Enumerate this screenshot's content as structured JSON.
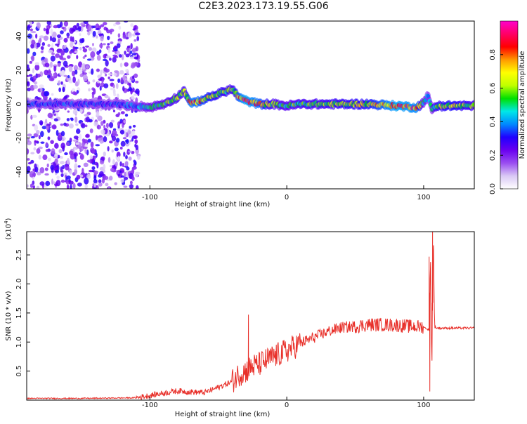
{
  "title": "C2E3.2023.173.19.55.G06",
  "chart_data": [
    {
      "type": "heatmap",
      "xlabel": "Height of straight line (km)",
      "ylabel": "Frequency (Hz)",
      "xlim": [
        -190,
        137
      ],
      "ylim": [
        -50,
        49
      ],
      "xticks": [
        -100,
        0,
        100
      ],
      "yticks": [
        -40,
        -20,
        0,
        20,
        40
      ],
      "grid": false,
      "colorbar": {
        "label": "Normalized spectral amplitude",
        "range": [
          0,
          1
        ],
        "ticks": [
          0.0,
          0.2,
          0.4,
          0.6,
          0.8
        ],
        "colormap": [
          "#ffffff",
          "#d9c8f5",
          "#9a4df0",
          "#6a00f0",
          "#2000ff",
          "#0088ff",
          "#00e8e8",
          "#00e000",
          "#bfff00",
          "#ffff00",
          "#ff9900",
          "#ff0000",
          "#ff0066",
          "#ff00cc"
        ]
      },
      "ridge": {
        "x": [
          -190,
          -130,
          -110,
          -100,
          -90,
          -80,
          -75,
          -70,
          -60,
          -50,
          -40,
          -35,
          -30,
          -25,
          -20,
          -10,
          0,
          10,
          20,
          40,
          60,
          80,
          95,
          100,
          103,
          106,
          110,
          120,
          137
        ],
        "freq": [
          0,
          0,
          -1,
          -2,
          0,
          4,
          8,
          0,
          3,
          6,
          9,
          4,
          2,
          1,
          0,
          0,
          -1,
          0,
          0,
          0,
          0,
          -1,
          -2,
          1,
          5,
          -3,
          -1,
          -1,
          -1
        ],
        "amplitude": [
          0.35,
          0.35,
          0.4,
          0.5,
          0.55,
          0.6,
          0.6,
          0.85,
          0.75,
          0.65,
          0.6,
          0.8,
          0.9,
          0.85,
          0.8,
          0.6,
          0.55,
          0.6,
          0.6,
          0.65,
          0.7,
          0.9,
          0.85,
          0.5,
          0.4,
          0.5,
          0.65,
          0.7,
          0.6
        ]
      },
      "noise_region": {
        "x_range": [
          -190,
          -108
        ],
        "freq_range": [
          -50,
          49
        ],
        "amplitude": 0.2
      }
    },
    {
      "type": "line",
      "xlabel": "Height of straight line (km)",
      "ylabel": "SNR (10 * v/v)",
      "y_multiplier": "(x10^4)",
      "xlim": [
        -190,
        137
      ],
      "ylim": [
        0,
        2.9
      ],
      "xticks": [
        -100,
        0,
        100
      ],
      "yticks": [
        0.5,
        1.0,
        1.5,
        2.0,
        2.5
      ],
      "grid": false,
      "color": "#e8302a",
      "x": [
        -190,
        -150,
        -110,
        -100,
        -90,
        -80,
        -70,
        -60,
        -50,
        -40,
        -35,
        -30,
        -25,
        -20,
        -10,
        0,
        10,
        20,
        30,
        40,
        50,
        60,
        70,
        80,
        90,
        100,
        104,
        105,
        106,
        107,
        108,
        110,
        120,
        137
      ],
      "values": [
        0.03,
        0.03,
        0.04,
        0.08,
        0.12,
        0.16,
        0.14,
        0.13,
        0.22,
        0.32,
        0.45,
        0.5,
        0.58,
        0.62,
        0.74,
        0.85,
        0.98,
        1.08,
        1.18,
        1.25,
        1.27,
        1.3,
        1.3,
        1.29,
        1.27,
        1.26,
        1.2,
        2.5,
        0.45,
        2.9,
        1.26,
        1.24,
        1.24,
        1.24
      ],
      "spikes": [
        {
          "x": -28,
          "value": 1.47
        },
        {
          "x": 104,
          "value": 2.47
        },
        {
          "x": 106.5,
          "value": 2.9
        },
        {
          "x": 104.5,
          "value": 0.15
        }
      ]
    }
  ]
}
